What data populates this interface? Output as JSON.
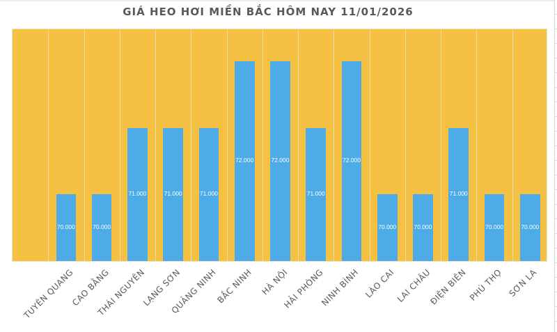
{
  "chart_data": {
    "type": "bar",
    "title": "GIÁ HEO HƠI MIỀN BẮC HÔM NAY 11/01/2026",
    "xlabel": "",
    "ylabel": "",
    "categories": [
      "TUYÊN QUANG",
      "CAO BẰNG",
      "THÁI NGUYÊN",
      "LẠNG SƠN",
      "QUẢNG NINH",
      "BẮC NINH",
      "HÀ NỘI",
      "HẢI PHÒNG",
      "NINH BÌNH",
      "LÀO CAI",
      "LAI CHÂU",
      "ĐIỆN BIÊN",
      "PHÚ THỌ",
      "SƠN LA"
    ],
    "values": [
      70000,
      70000,
      71000,
      71000,
      71000,
      72000,
      72000,
      71000,
      72000,
      70000,
      70000,
      71000,
      70000,
      70000
    ],
    "value_labels": [
      "70.000",
      "70.000",
      "71.000",
      "71.000",
      "71.000",
      "72.000",
      "72.000",
      "71.000",
      "72.000",
      "70.000",
      "70.000",
      "71.000",
      "70.000",
      "70.000"
    ],
    "ylim": [
      69000,
      72500
    ],
    "grid": "vertical",
    "legend": "none",
    "colors": {
      "bar": "#4dabe8",
      "plot_background": "#f4c142",
      "gridline": "#ead9b0",
      "label_text": "#595959",
      "data_label": "#ffffff"
    }
  }
}
